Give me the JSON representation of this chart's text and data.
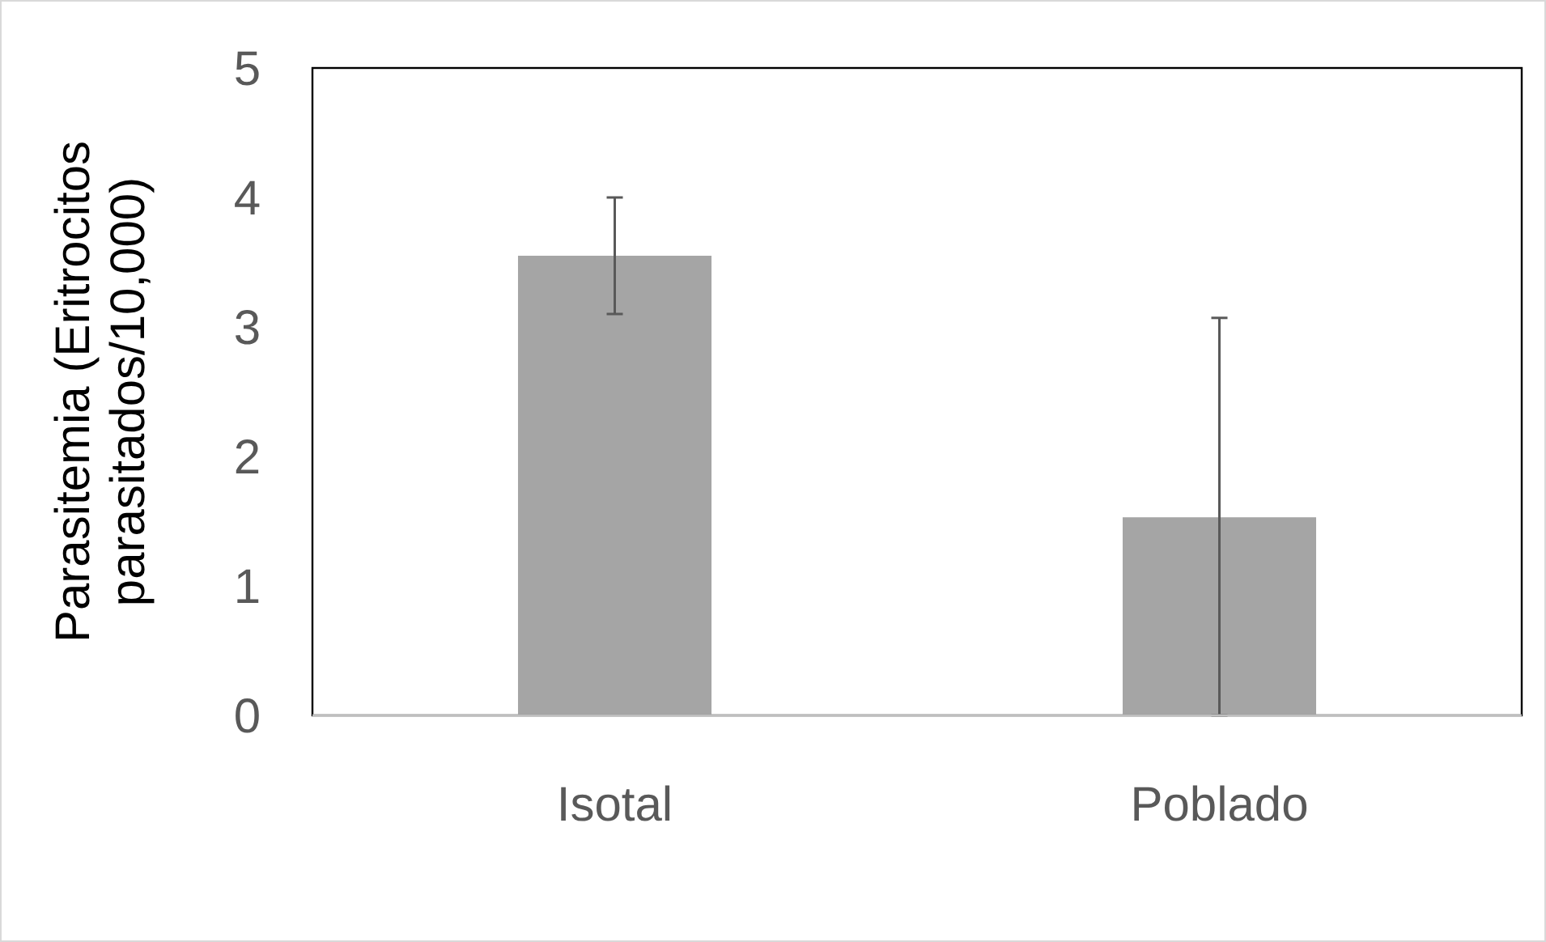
{
  "chart_data": {
    "type": "bar",
    "ylabel": "Parasitemia (Eritrocitos\nparasitados/10,000)",
    "categories": [
      "Isotal",
      "Poblado"
    ],
    "values": [
      3.55,
      1.53
    ],
    "errors": [
      [
        3.1,
        4.0
      ],
      [
        0,
        3.07
      ]
    ],
    "color": "#a5a5a5",
    "ylim": [
      0,
      5
    ],
    "yticks": [
      0,
      1,
      2,
      3,
      4,
      5
    ],
    "grid": false
  }
}
